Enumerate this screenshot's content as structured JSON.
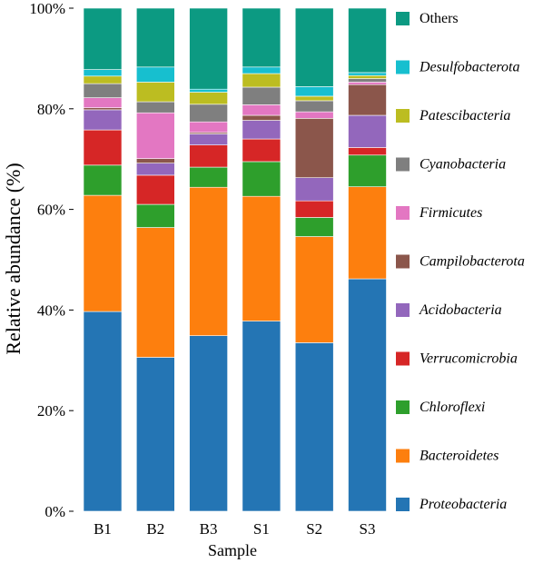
{
  "chart_data": {
    "type": "bar",
    "stacked": true,
    "title": "",
    "xlabel": "Sample",
    "ylabel": "Relative abundance (%)",
    "ylim": [
      0,
      100
    ],
    "yticks": [
      "0%",
      "20%",
      "40%",
      "60%",
      "80%",
      "100%"
    ],
    "grid": false,
    "legend_position": "right",
    "categories": [
      "B1",
      "B2",
      "B3",
      "S1",
      "S2",
      "S3"
    ],
    "series": [
      {
        "name": "Proteobacteria",
        "color": "#2475b4",
        "italic": true,
        "values": [
          39.7,
          30.6,
          34.9,
          37.8,
          33.5,
          46.2
        ]
      },
      {
        "name": "Bacteroidetes",
        "color": "#fd7f0e",
        "italic": true,
        "values": [
          23.1,
          25.8,
          29.5,
          24.8,
          21.1,
          18.3
        ]
      },
      {
        "name": "Chloroflexi",
        "color": "#2e9f2c",
        "italic": true,
        "values": [
          6.0,
          4.6,
          4.0,
          6.9,
          3.8,
          6.3
        ]
      },
      {
        "name": "Verrucomicrobia",
        "color": "#d62626",
        "italic": true,
        "values": [
          7.0,
          5.8,
          4.4,
          4.5,
          3.3,
          1.5
        ]
      },
      {
        "name": "Acidobacteria",
        "color": "#9367bc",
        "italic": true,
        "values": [
          4.0,
          2.4,
          2.2,
          3.7,
          4.6,
          6.4
        ]
      },
      {
        "name": "Campilobacterota",
        "color": "#8b564b",
        "italic": true,
        "values": [
          0.4,
          0.9,
          0.3,
          1.0,
          11.8,
          6.1
        ]
      },
      {
        "name": "Firmicutes",
        "color": "#e377c2",
        "italic": true,
        "values": [
          2.0,
          9.1,
          2.1,
          2.1,
          1.3,
          0.5
        ]
      },
      {
        "name": "Cyanobacteria",
        "color": "#7f7f7f",
        "italic": true,
        "values": [
          2.8,
          2.2,
          3.5,
          3.5,
          2.2,
          0.7
        ]
      },
      {
        "name": "Patescibacteria",
        "color": "#bcbd21",
        "italic": true,
        "values": [
          1.5,
          3.9,
          2.4,
          2.7,
          0.9,
          0.6
        ]
      },
      {
        "name": "Desulfobacterota",
        "color": "#17bfcf",
        "italic": true,
        "values": [
          1.3,
          3.0,
          0.6,
          1.3,
          1.9,
          0.6
        ]
      },
      {
        "name": "Others",
        "color": "#0c9a82",
        "italic": false,
        "values": [
          12.2,
          11.7,
          16.1,
          11.7,
          15.6,
          12.8
        ]
      }
    ]
  }
}
